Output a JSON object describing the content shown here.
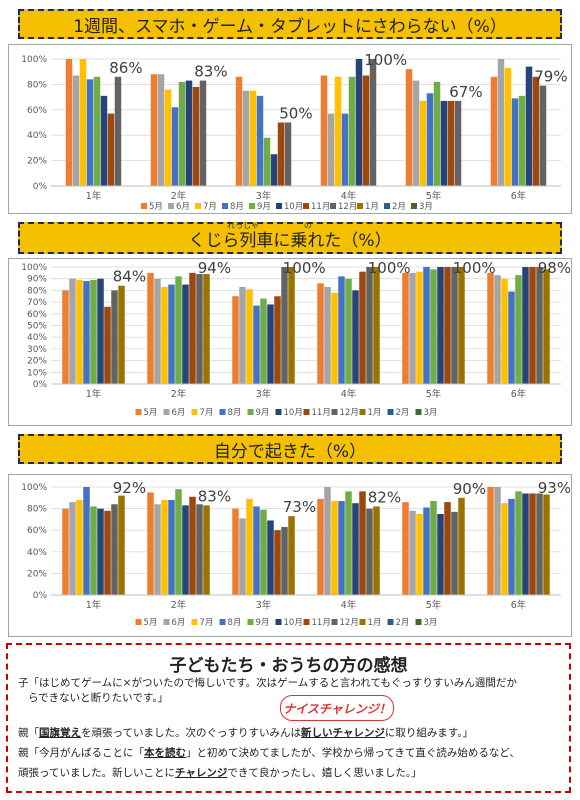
{
  "months": [
    "5月",
    "6月",
    "7月",
    "8月",
    "9月",
    "10月",
    "11月",
    "12月",
    "1月",
    "2月",
    "3月"
  ],
  "colors": [
    "#ed7d31",
    "#a5a5a5",
    "#ffc000",
    "#4472c4",
    "#70ad47",
    "#264478",
    "#9e480e",
    "#636363",
    "#997300",
    "#255e91",
    "#43682b"
  ],
  "grades": [
    "1年",
    "2年",
    "3年",
    "4年",
    "5年",
    "6年"
  ],
  "chart_data": [
    {
      "type": "bar",
      "title": "1週間、スマホ・ゲーム・タブレットにさわらない（%）",
      "categories": [
        "1年",
        "2年",
        "3年",
        "4年",
        "5年",
        "6年"
      ],
      "ylim": [
        0,
        100
      ],
      "yticks": [
        "0%",
        "20%",
        "40%",
        "60%",
        "80%",
        "100%"
      ],
      "series": [
        {
          "name": "5月",
          "values": [
            100,
            88,
            86,
            87,
            92,
            86
          ]
        },
        {
          "name": "6月",
          "values": [
            87,
            88,
            75,
            57,
            83,
            100
          ]
        },
        {
          "name": "7月",
          "values": [
            100,
            76,
            75,
            86,
            67,
            93
          ]
        },
        {
          "name": "8月",
          "values": [
            84,
            62,
            71,
            57,
            73,
            69
          ]
        },
        {
          "name": "9月",
          "values": [
            86,
            82,
            38,
            86,
            82,
            71
          ]
        },
        {
          "name": "10月",
          "values": [
            71,
            83,
            25,
            100,
            67,
            94
          ]
        },
        {
          "name": "11月",
          "values": [
            57,
            78,
            50,
            87,
            67,
            86
          ]
        },
        {
          "name": "12月",
          "values": [
            86,
            83,
            50,
            100,
            67,
            79
          ]
        }
      ],
      "annotations": [
        "86%",
        "83%",
        "50%",
        "100%",
        "67%",
        "79%"
      ]
    },
    {
      "type": "bar",
      "title": "くじら列車に乗れた（%）",
      "ruby": "れっしゃ",
      "ruby2": "の",
      "categories": [
        "1年",
        "2年",
        "3年",
        "4年",
        "5年",
        "6年"
      ],
      "ylim": [
        0,
        100
      ],
      "yticks": [
        "0%",
        "10%",
        "20%",
        "30%",
        "40%",
        "50%",
        "60%",
        "70%",
        "80%",
        "90%",
        "100%"
      ],
      "series": [
        {
          "name": "5月",
          "values": [
            80,
            95,
            75,
            86,
            95,
            95
          ]
        },
        {
          "name": "6月",
          "values": [
            90,
            90,
            83,
            83,
            95,
            93
          ]
        },
        {
          "name": "7月",
          "values": [
            89,
            83,
            81,
            78,
            96,
            90
          ]
        },
        {
          "name": "8月",
          "values": [
            88,
            85,
            67,
            92,
            100,
            79
          ]
        },
        {
          "name": "9月",
          "values": [
            89,
            92,
            73,
            90,
            98,
            93
          ]
        },
        {
          "name": "10月",
          "values": [
            90,
            85,
            68,
            80,
            100,
            100
          ]
        },
        {
          "name": "11月",
          "values": [
            66,
            95,
            75,
            96,
            100,
            100
          ]
        },
        {
          "name": "12月",
          "values": [
            80,
            94,
            100,
            100,
            100,
            100
          ]
        },
        {
          "name": "1月",
          "values": [
            84,
            94,
            100,
            100,
            100,
            98
          ]
        }
      ],
      "annotations": [
        "84%",
        "94%",
        "100%",
        "100%",
        "100%",
        "98%"
      ]
    },
    {
      "type": "bar",
      "title": "自分で起きた（%）",
      "categories": [
        "1年",
        "2年",
        "3年",
        "4年",
        "5年",
        "6年"
      ],
      "ylim": [
        0,
        100
      ],
      "yticks": [
        "0%",
        "20%",
        "40%",
        "60%",
        "80%",
        "100%"
      ],
      "series": [
        {
          "name": "5月",
          "values": [
            80,
            95,
            80,
            89,
            86,
            100
          ]
        },
        {
          "name": "6月",
          "values": [
            86,
            84,
            71,
            100,
            78,
            100
          ]
        },
        {
          "name": "7月",
          "values": [
            88,
            88,
            89,
            87,
            75,
            85
          ]
        },
        {
          "name": "8月",
          "values": [
            100,
            88,
            82,
            87,
            81,
            89
          ]
        },
        {
          "name": "9月",
          "values": [
            82,
            98,
            79,
            96,
            87,
            96
          ]
        },
        {
          "name": "10月",
          "values": [
            80,
            83,
            69,
            85,
            75,
            94
          ]
        },
        {
          "name": "11月",
          "values": [
            78,
            91,
            60,
            96,
            86,
            94
          ]
        },
        {
          "name": "12月",
          "values": [
            84,
            84,
            63,
            80,
            77,
            94
          ]
        },
        {
          "name": "1月",
          "values": [
            92,
            83,
            73,
            82,
            90,
            93
          ]
        }
      ],
      "annotations": [
        "92%",
        "83%",
        "73%",
        "82%",
        "90%",
        "93%"
      ]
    }
  ],
  "comments": {
    "title": "子どもたち・おうちの方の感想",
    "line1": "子「はじめてゲームに×がついたので悔しいです。次はゲームすると言われてもぐっすりすいみん週間だか",
    "line2": "らできないと断りたいです。」",
    "badge": "ナイスチャレンジ！",
    "line3a": "親「",
    "line3u": "国旗覚え",
    "line3b": "を頑張っていました。次のぐっすりすいみんは",
    "line3u2": "新しいチャレンジ",
    "line3c": "に取り組みます。」",
    "line4a": "親「今月がんばることに「",
    "line4u": "本を読む",
    "line4b": "」と初めて決めてましたが、学校から帰ってきて直ぐ読み始めるなど、",
    "line5a": "頑張っていました。新しいことに",
    "line5u": "チャレンジ",
    "line5b": "できて良かったし、嬉しく思いました。」"
  }
}
